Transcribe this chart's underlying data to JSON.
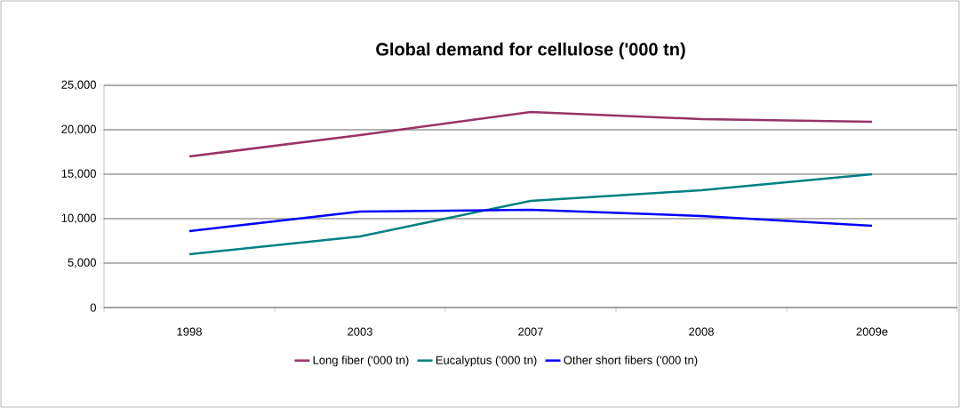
{
  "chart_data": {
    "type": "line",
    "title": "Global demand for cellulose ('000 tn)",
    "categories": [
      "1998",
      "2003",
      "2007",
      "2008",
      "2009e"
    ],
    "series": [
      {
        "name": "Long fiber ('000 tn)",
        "color": "#993366",
        "values": [
          17000,
          19400,
          22000,
          21200,
          20900
        ]
      },
      {
        "name": "Eucalyptus ('000 tn)",
        "color": "#008080",
        "values": [
          6000,
          8000,
          12000,
          13200,
          15000
        ]
      },
      {
        "name": "Other short fibers ('000 tn)",
        "color": "#0000ff",
        "values": [
          8600,
          10800,
          11000,
          10300,
          9200
        ]
      }
    ],
    "ylim": [
      0,
      25000
    ],
    "yticks": [
      {
        "value": 0,
        "label": "0"
      },
      {
        "value": 5000,
        "label": "5,000"
      },
      {
        "value": 10000,
        "label": "10,000"
      },
      {
        "value": 15000,
        "label": "15,000"
      },
      {
        "value": 20000,
        "label": "20,000"
      },
      {
        "value": 25000,
        "label": "25,000"
      }
    ],
    "grid": "y",
    "legend": "bottom",
    "marker": "none",
    "line_style": "solid"
  }
}
